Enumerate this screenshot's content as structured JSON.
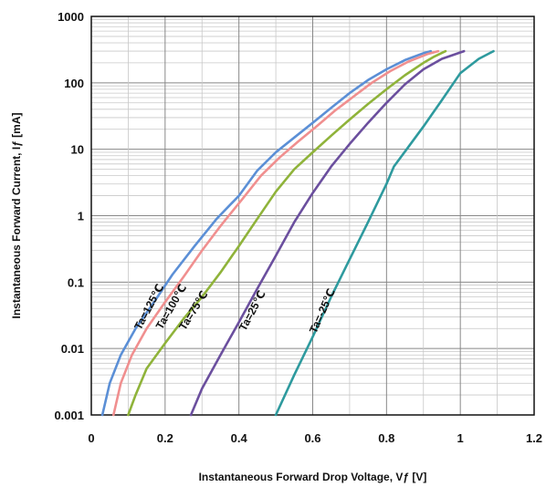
{
  "chart_data": {
    "type": "line",
    "xlabel": "Instantaneous Forward Drop Voltage, Vƒ [V]",
    "ylabel": "Instantaneous Forward Current, Iƒ [mA]",
    "xlim": [
      0,
      1.2
    ],
    "ylim": [
      0.001,
      1000
    ],
    "y_scale": "log",
    "grid": true,
    "x_ticks": [
      "0",
      "0.2",
      "0.4",
      "0.6",
      "0.8",
      "1",
      "1.2"
    ],
    "y_ticks": [
      "0.001",
      "0.01",
      "0.1",
      "1",
      "10",
      "100",
      "1000"
    ],
    "series": [
      {
        "name": "Ta=125℃",
        "color": "#5b8fd6",
        "x": [
          0.03,
          0.05,
          0.08,
          0.12,
          0.17,
          0.22,
          0.28,
          0.34,
          0.4,
          0.45,
          0.5,
          0.55,
          0.6,
          0.65,
          0.7,
          0.75,
          0.8,
          0.85,
          0.9,
          0.92
        ],
        "y": [
          0.001,
          0.003,
          0.008,
          0.02,
          0.05,
          0.13,
          0.35,
          0.9,
          2.0,
          4.8,
          9.0,
          15,
          25,
          42,
          70,
          110,
          160,
          220,
          280,
          300
        ]
      },
      {
        "name": "Ta=100℃",
        "color": "#f08f8f",
        "x": [
          0.06,
          0.08,
          0.11,
          0.15,
          0.2,
          0.25,
          0.3,
          0.35,
          0.41,
          0.46,
          0.51,
          0.56,
          0.61,
          0.66,
          0.71,
          0.76,
          0.81,
          0.86,
          0.91,
          0.94
        ],
        "y": [
          0.001,
          0.003,
          0.008,
          0.02,
          0.05,
          0.12,
          0.3,
          0.7,
          1.8,
          4.0,
          7.5,
          13,
          22,
          38,
          62,
          100,
          150,
          210,
          270,
          300
        ]
      },
      {
        "name": "Ta=75℃",
        "color": "#8fb33a",
        "x": [
          0.1,
          0.12,
          0.15,
          0.2,
          0.25,
          0.3,
          0.35,
          0.4,
          0.45,
          0.5,
          0.55,
          0.6,
          0.65,
          0.7,
          0.75,
          0.8,
          0.85,
          0.9,
          0.93,
          0.96
        ],
        "y": [
          0.001,
          0.002,
          0.005,
          0.012,
          0.028,
          0.06,
          0.14,
          0.35,
          0.9,
          2.3,
          5.0,
          9.0,
          16,
          28,
          48,
          80,
          130,
          200,
          250,
          300
        ]
      },
      {
        "name": "Ta=25℃",
        "color": "#6b4f9e",
        "x": [
          0.27,
          0.3,
          0.35,
          0.4,
          0.45,
          0.5,
          0.55,
          0.6,
          0.65,
          0.7,
          0.75,
          0.8,
          0.85,
          0.9,
          0.95,
          1.01
        ],
        "y": [
          0.001,
          0.0025,
          0.008,
          0.025,
          0.08,
          0.25,
          0.8,
          2.2,
          5.5,
          12,
          25,
          50,
          95,
          160,
          230,
          300
        ]
      },
      {
        "name": "Ta=-25℃",
        "color": "#2e9a9e",
        "x": [
          0.5,
          0.55,
          0.6,
          0.65,
          0.7,
          0.75,
          0.8,
          0.82,
          0.86,
          0.9,
          0.95,
          1.0,
          1.05,
          1.09
        ],
        "y": [
          0.001,
          0.004,
          0.015,
          0.06,
          0.22,
          0.8,
          3.0,
          5.5,
          11,
          22,
          55,
          140,
          230,
          300
        ]
      }
    ]
  }
}
